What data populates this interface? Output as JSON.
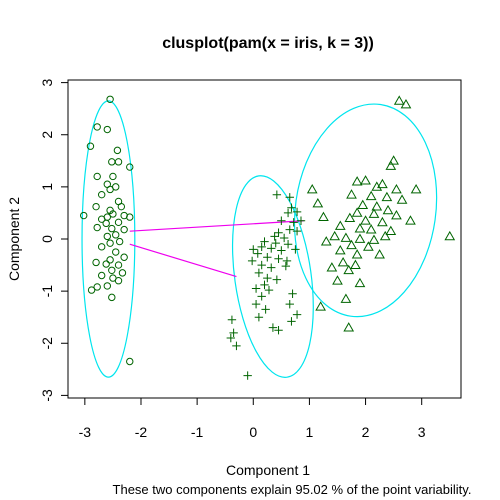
{
  "chart_data": {
    "type": "scatter",
    "title": "clusplot(pam(x = iris, k = 3))",
    "xlabel": "Component 1",
    "ylabel": "Component 2",
    "subtitle": "These two components explain 95.02 % of the point variability.",
    "xlim": [
      -3.3,
      3.7
    ],
    "ylim": [
      -3.05,
      3.05
    ],
    "xticks": [
      -3,
      -2,
      -1,
      0,
      1,
      2,
      3
    ],
    "yticks": [
      -3,
      -2,
      -1,
      0,
      1,
      2,
      3
    ],
    "point_color": "#006400",
    "ellipse_color": "#00e5ee",
    "line_color": "#ee00ee",
    "grid": false,
    "legend": "none",
    "clusters": [
      {
        "marker": "circle",
        "ellipse": {
          "cx": -2.58,
          "cy": 0.0,
          "rx": 0.47,
          "ry": 2.65
        },
        "points": [
          [
            -2.55,
            2.68
          ],
          [
            -2.78,
            2.15
          ],
          [
            -2.6,
            2.1
          ],
          [
            -2.9,
            1.78
          ],
          [
            -2.42,
            1.7
          ],
          [
            -2.52,
            1.48
          ],
          [
            -2.4,
            1.48
          ],
          [
            -2.2,
            1.38
          ],
          [
            -2.78,
            1.2
          ],
          [
            -2.5,
            1.2
          ],
          [
            -2.6,
            1.05
          ],
          [
            -2.45,
            1.0
          ],
          [
            -2.55,
            0.95
          ],
          [
            -2.7,
            0.85
          ],
          [
            -2.4,
            0.72
          ],
          [
            -2.8,
            0.62
          ],
          [
            -2.55,
            0.55
          ],
          [
            -2.35,
            0.62
          ],
          [
            -2.5,
            0.48
          ],
          [
            -2.6,
            0.42
          ],
          [
            -2.7,
            0.38
          ],
          [
            -2.3,
            0.45
          ],
          [
            -2.4,
            0.32
          ],
          [
            -2.62,
            0.3
          ],
          [
            -2.2,
            0.42
          ],
          [
            -2.78,
            0.22
          ],
          [
            -2.52,
            0.2
          ],
          [
            -2.3,
            0.18
          ],
          [
            -2.45,
            0.08
          ],
          [
            -2.6,
            0.05
          ],
          [
            -3.02,
            0.45
          ],
          [
            -2.38,
            -0.05
          ],
          [
            -2.55,
            -0.08
          ],
          [
            -2.7,
            -0.15
          ],
          [
            -2.45,
            -0.25
          ],
          [
            -2.3,
            -0.35
          ],
          [
            -2.55,
            -0.4
          ],
          [
            -2.8,
            -0.45
          ],
          [
            -2.62,
            -0.48
          ],
          [
            -2.4,
            -0.5
          ],
          [
            -2.52,
            -0.6
          ],
          [
            -2.33,
            -0.65
          ],
          [
            -2.7,
            -0.7
          ],
          [
            -2.5,
            -0.75
          ],
          [
            -2.88,
            -0.98
          ],
          [
            -2.4,
            -0.8
          ],
          [
            -2.6,
            -0.9
          ],
          [
            -2.78,
            -0.92
          ],
          [
            -2.52,
            -1.12
          ],
          [
            -2.2,
            -2.35
          ]
        ]
      },
      {
        "marker": "plus",
        "ellipse": {
          "cx": 0.35,
          "cy": -0.72,
          "rx": 0.68,
          "ry": 1.95,
          "rotation": -8
        },
        "points": [
          [
            0.42,
            0.85
          ],
          [
            0.65,
            0.8
          ],
          [
            0.68,
            0.6
          ],
          [
            0.62,
            0.5
          ],
          [
            0.78,
            0.52
          ],
          [
            0.5,
            0.35
          ],
          [
            0.72,
            0.32
          ],
          [
            0.85,
            0.35
          ],
          [
            0.65,
            0.18
          ],
          [
            0.78,
            0.15
          ],
          [
            0.45,
            0.12
          ],
          [
            0.38,
            0.05
          ],
          [
            0.55,
            0.02
          ],
          [
            0.2,
            -0.05
          ],
          [
            0.4,
            -0.08
          ],
          [
            0.62,
            -0.1
          ],
          [
            0.15,
            -0.15
          ],
          [
            0.32,
            -0.18
          ],
          [
            0.5,
            -0.22
          ],
          [
            0.75,
            -0.2
          ],
          [
            0.0,
            -0.2
          ],
          [
            0.08,
            -0.28
          ],
          [
            0.25,
            -0.35
          ],
          [
            0.45,
            -0.38
          ],
          [
            0.6,
            -0.42
          ],
          [
            -0.02,
            -0.42
          ],
          [
            0.15,
            -0.5
          ],
          [
            0.32,
            -0.55
          ],
          [
            0.58,
            -0.52
          ],
          [
            0.1,
            -0.65
          ],
          [
            0.25,
            -0.75
          ],
          [
            0.42,
            -0.78
          ],
          [
            0.2,
            -0.88
          ],
          [
            0.05,
            -0.95
          ],
          [
            0.28,
            -0.98
          ],
          [
            0.15,
            -1.1
          ],
          [
            0.7,
            -1.05
          ],
          [
            0.65,
            -1.25
          ],
          [
            0.78,
            -1.45
          ],
          [
            0.05,
            -1.25
          ],
          [
            0.22,
            -1.35
          ],
          [
            0.1,
            -1.5
          ],
          [
            0.68,
            -1.58
          ],
          [
            0.35,
            -1.7
          ],
          [
            0.45,
            -1.75
          ],
          [
            -0.38,
            -1.55
          ],
          [
            -0.35,
            -1.8
          ],
          [
            -0.4,
            -1.9
          ],
          [
            -0.3,
            -2.05
          ],
          [
            -0.1,
            -2.62
          ]
        ]
      },
      {
        "marker": "triangle",
        "ellipse": {
          "cx": 2.0,
          "cy": 0.55,
          "rx": 1.25,
          "ry": 2.05,
          "rotation": 8
        },
        "points": [
          [
            2.6,
            2.65
          ],
          [
            2.72,
            2.58
          ],
          [
            2.5,
            1.5
          ],
          [
            2.45,
            1.4
          ],
          [
            1.85,
            1.1
          ],
          [
            2.2,
            1.0
          ],
          [
            2.0,
            1.12
          ],
          [
            2.3,
            1.05
          ],
          [
            2.55,
            0.95
          ],
          [
            2.9,
            0.95
          ],
          [
            1.05,
            0.95
          ],
          [
            1.75,
            0.85
          ],
          [
            2.1,
            0.82
          ],
          [
            2.38,
            0.8
          ],
          [
            2.65,
            0.75
          ],
          [
            1.15,
            0.68
          ],
          [
            1.95,
            0.65
          ],
          [
            2.2,
            0.62
          ],
          [
            2.4,
            0.55
          ],
          [
            1.85,
            0.5
          ],
          [
            2.15,
            0.48
          ],
          [
            2.55,
            0.45
          ],
          [
            1.25,
            0.42
          ],
          [
            1.72,
            0.4
          ],
          [
            2.0,
            0.35
          ],
          [
            2.3,
            0.32
          ],
          [
            2.8,
            0.35
          ],
          [
            1.55,
            0.25
          ],
          [
            1.9,
            0.2
          ],
          [
            2.1,
            0.18
          ],
          [
            2.45,
            0.15
          ],
          [
            1.45,
            0.05
          ],
          [
            1.65,
            0.02
          ],
          [
            1.9,
            0.0
          ],
          [
            2.15,
            -0.02
          ],
          [
            2.35,
            0.05
          ],
          [
            3.5,
            0.05
          ],
          [
            1.3,
            -0.05
          ],
          [
            1.75,
            -0.12
          ],
          [
            2.05,
            -0.15
          ],
          [
            1.55,
            -0.22
          ],
          [
            1.85,
            -0.3
          ],
          [
            2.25,
            -0.3
          ],
          [
            1.6,
            -0.45
          ],
          [
            1.82,
            -0.5
          ],
          [
            1.4,
            -0.55
          ],
          [
            1.7,
            -0.6
          ],
          [
            1.5,
            -0.8
          ],
          [
            1.9,
            -0.85
          ],
          [
            1.65,
            -1.15
          ],
          [
            1.2,
            -1.3
          ],
          [
            1.7,
            -1.7
          ]
        ]
      }
    ],
    "connectors": [
      [
        [
          -2.2,
          0.15
        ],
        [
          0.9,
          0.35
        ]
      ],
      [
        [
          -2.2,
          -0.1
        ],
        [
          -0.3,
          -0.72
        ]
      ]
    ]
  }
}
